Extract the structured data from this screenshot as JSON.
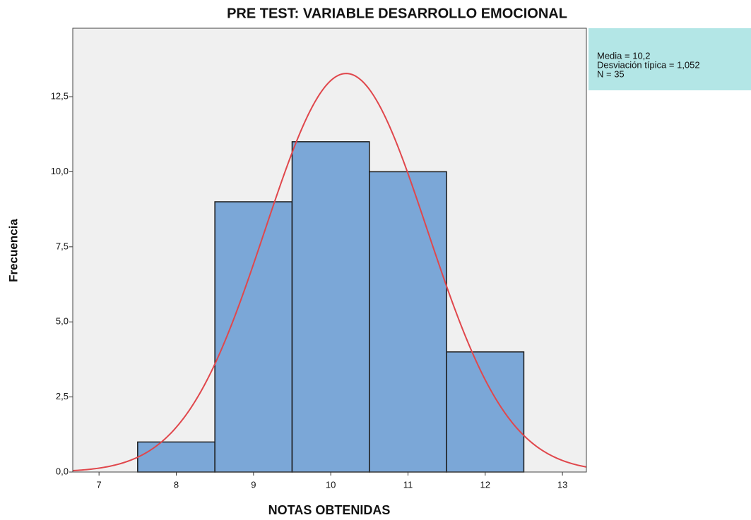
{
  "chart_data": {
    "type": "histogram",
    "title": "PRE TEST: VARIABLE DESARROLLO EMOCIONAL",
    "x_label": "NOTAS OBTENIDAS",
    "y_label": "Frecuencia",
    "bins": [
      7.5,
      8.5,
      9.5,
      10.5,
      11.5,
      12.5
    ],
    "values": [
      1,
      9,
      11,
      10,
      4
    ],
    "color": "#7ba7d7",
    "xlim": [
      6.66,
      13.31
    ],
    "xticks": [
      7,
      8,
      9,
      10,
      11,
      12,
      13
    ],
    "ylim": [
      0,
      14.78
    ],
    "yticks": [
      {
        "value": 0,
        "label": "0,0"
      },
      {
        "value": 2.5,
        "label": "2,5"
      },
      {
        "value": 5,
        "label": "5,0"
      },
      {
        "value": 7.5,
        "label": "7,5"
      },
      {
        "value": 10,
        "label": "10,0"
      },
      {
        "value": 12.5,
        "label": "12,5"
      }
    ],
    "stats_text": [
      "Media = 10,2",
      "Desviación típica = 1,052",
      "N = 35"
    ],
    "normal_curve": {
      "mean": 10.2,
      "sd": 1.052,
      "n": 35,
      "color": "#e0474c"
    }
  }
}
